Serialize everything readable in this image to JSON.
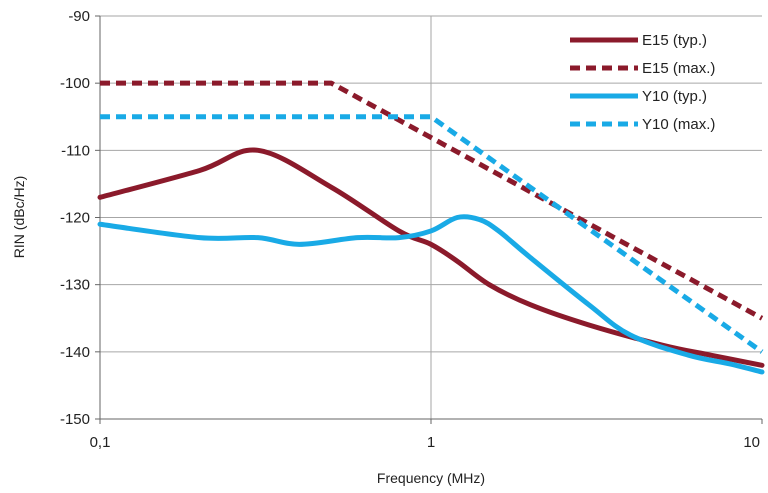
{
  "chart_data": {
    "type": "line",
    "xlabel": "Frequency (MHz)",
    "ylabel": "RIN (dBc/Hz)",
    "x_scale": "log",
    "xlim": [
      0.1,
      10
    ],
    "ylim": [
      -150,
      -90
    ],
    "x_ticks": [
      {
        "value": 0.1,
        "label": "0,1"
      },
      {
        "value": 1,
        "label": "1"
      },
      {
        "value": 10,
        "label": "10"
      }
    ],
    "y_ticks": [
      {
        "value": -90,
        "label": "-90"
      },
      {
        "value": -100,
        "label": "-100"
      },
      {
        "value": -110,
        "label": "-110"
      },
      {
        "value": -120,
        "label": "-120"
      },
      {
        "value": -130,
        "label": "-130"
      },
      {
        "value": -140,
        "label": "-140"
      },
      {
        "value": -150,
        "label": "-150"
      }
    ],
    "grid": {
      "vertical_at_x": [
        1
      ]
    },
    "legend_position": "top-right",
    "series": [
      {
        "name": "E15 (typ.)",
        "color": "#8b1a2b",
        "style": "solid",
        "points": [
          [
            0.1,
            -117
          ],
          [
            0.2,
            -113
          ],
          [
            0.3,
            -110
          ],
          [
            0.5,
            -115.5
          ],
          [
            0.8,
            -122
          ],
          [
            1.0,
            -124
          ],
          [
            1.2,
            -126.5
          ],
          [
            1.5,
            -130
          ],
          [
            2.0,
            -133
          ],
          [
            3.0,
            -136
          ],
          [
            5.0,
            -139
          ],
          [
            7.0,
            -140.5
          ],
          [
            10.0,
            -142
          ]
        ]
      },
      {
        "name": "E15 (max.)",
        "color": "#8b1a2b",
        "style": "dashed",
        "points": [
          [
            0.1,
            -100
          ],
          [
            0.5,
            -100
          ],
          [
            10.0,
            -135
          ]
        ]
      },
      {
        "name": "Y10 (typ.)",
        "color": "#19aae6",
        "style": "solid",
        "points": [
          [
            0.1,
            -121
          ],
          [
            0.2,
            -123
          ],
          [
            0.3,
            -123
          ],
          [
            0.4,
            -124
          ],
          [
            0.6,
            -123
          ],
          [
            0.8,
            -123
          ],
          [
            1.0,
            -122
          ],
          [
            1.2,
            -120
          ],
          [
            1.4,
            -120.3
          ],
          [
            1.6,
            -122
          ],
          [
            2.0,
            -126
          ],
          [
            3.0,
            -133
          ],
          [
            4.0,
            -137.5
          ],
          [
            6.0,
            -140.5
          ],
          [
            8.0,
            -141.8
          ],
          [
            10.0,
            -143
          ]
        ]
      },
      {
        "name": "Y10 (max.)",
        "color": "#19aae6",
        "style": "dashed",
        "points": [
          [
            0.1,
            -105
          ],
          [
            1.0,
            -105
          ],
          [
            10.0,
            -140
          ]
        ]
      }
    ]
  }
}
